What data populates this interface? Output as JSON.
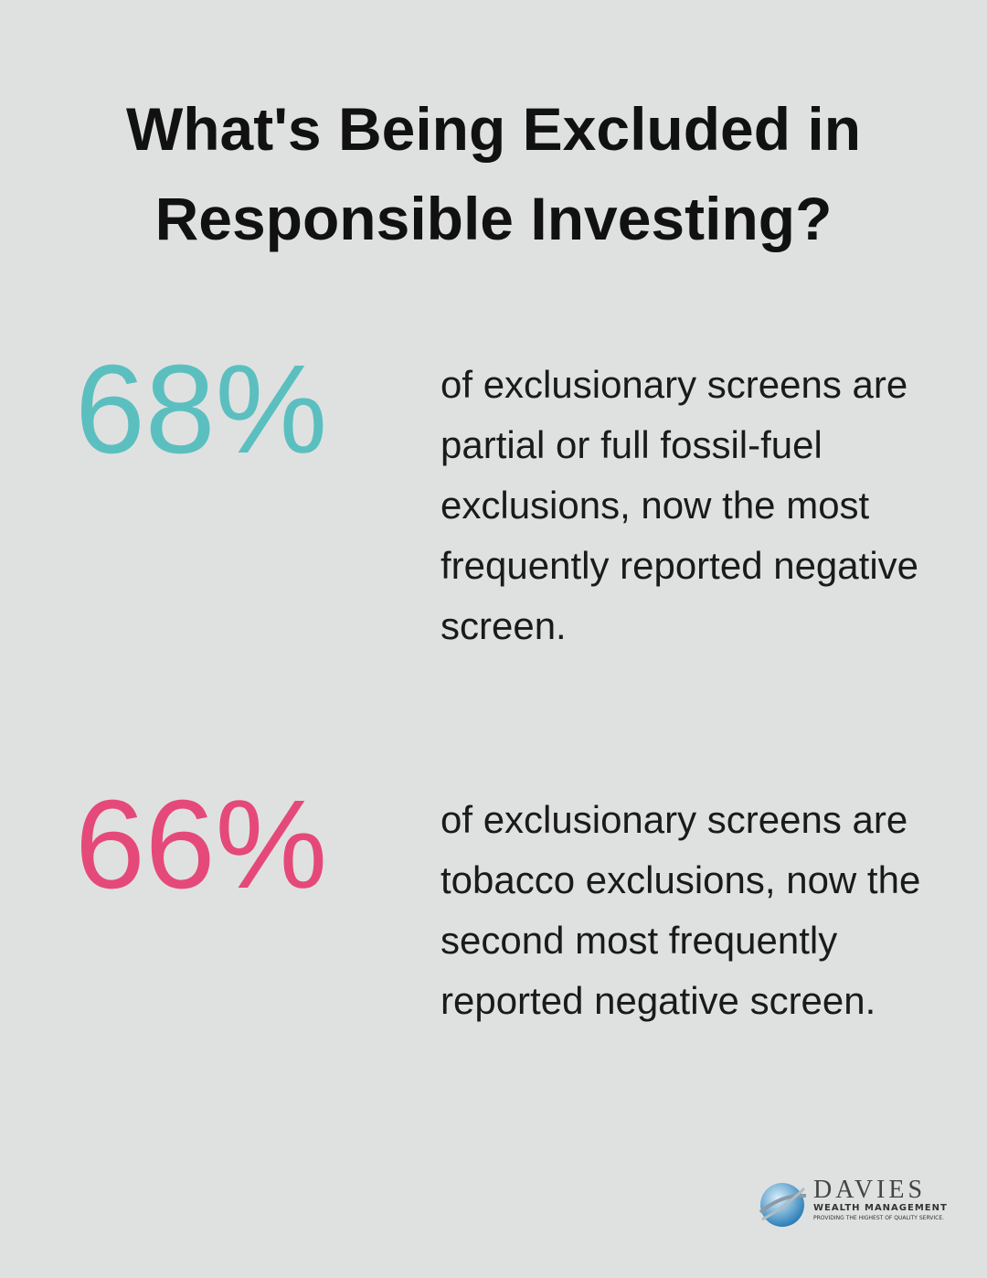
{
  "header": {
    "title": "What's Being Excluded in Responsible Investing?"
  },
  "stats": [
    {
      "value": "68%",
      "text": "of exclusionary screens are partial or full fossil-fuel exclusions, now the most frequently reported negative screen.",
      "color": "#5bbfc0"
    },
    {
      "value": "66%",
      "text": "of exclusionary screens are tobacco exclusions, now the second most frequently reported negative screen.",
      "color": "#e5497a"
    }
  ],
  "logo": {
    "name": "DAVIES",
    "subtitle": "WEALTH MANAGEMENT",
    "tagline": "PROVIDING THE HIGHEST OF QUALITY SERVICE."
  }
}
